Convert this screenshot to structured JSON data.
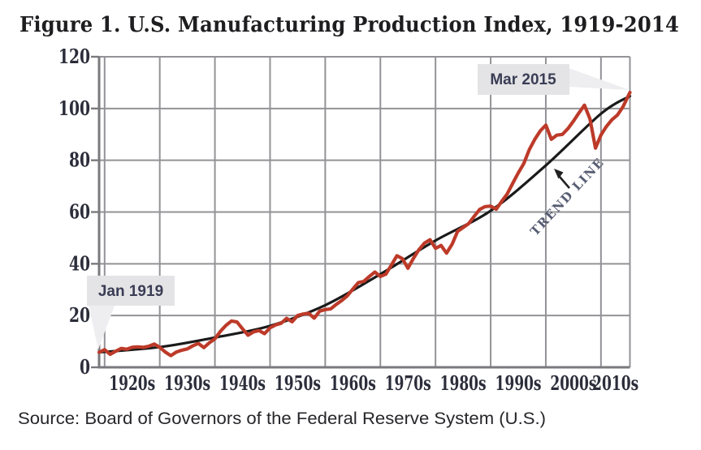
{
  "title": "Figure 1. U.S. Manufacturing Production Index, 1919-2014",
  "source": "Source: Board of Governors of the Federal Reserve System (U.S.)",
  "colors": {
    "series_red": "#bd3a29",
    "trend_black": "#1a1a1a",
    "grid_gray": "#939397",
    "axis_gray": "#7a7a7e",
    "callout_bg": "#e4e4e6",
    "callout_tail": "#eeeef1",
    "callout_text": "#3a3d55",
    "tick_text": "#2b2d3a",
    "title_text": "#1e1e20",
    "source_text": "#26262a",
    "trend_label_text": "#565c72",
    "arrow_black": "#222222"
  },
  "chart_data": {
    "type": "line",
    "title": "Figure 1. U.S. Manufacturing Production Index, 1919-2014",
    "xlabel": "",
    "ylabel": "",
    "x_range": [
      1919,
      2015.25
    ],
    "y_range": [
      0,
      120
    ],
    "grid": true,
    "legend": "none",
    "y_ticks": [
      0,
      20,
      40,
      60,
      80,
      100,
      120
    ],
    "x_tick_labels": [
      "1920s",
      "1930s",
      "1940s",
      "1950s",
      "1960s",
      "1970s",
      "1980s",
      "1990s",
      "2000s",
      "2010s"
    ],
    "x_decade_gridlines": [
      1920,
      1930,
      1940,
      1950,
      1960,
      1970,
      1980,
      1990,
      2000,
      2010
    ],
    "series": [
      {
        "name": "U.S. Manufacturing Production Index",
        "color": "#bd3a29",
        "style": "jagged",
        "x": [
          1919,
          1920,
          1921,
          1922,
          1923,
          1924,
          1925,
          1926,
          1927,
          1928,
          1929,
          1930,
          1931,
          1932,
          1933,
          1934,
          1935,
          1936,
          1937,
          1938,
          1939,
          1940,
          1941,
          1942,
          1943,
          1944,
          1945,
          1946,
          1947,
          1948,
          1949,
          1950,
          1951,
          1952,
          1953,
          1954,
          1955,
          1956,
          1957,
          1958,
          1959,
          1960,
          1961,
          1962,
          1963,
          1964,
          1965,
          1966,
          1967,
          1968,
          1969,
          1970,
          1971,
          1972,
          1973,
          1974,
          1975,
          1976,
          1977,
          1978,
          1979,
          1980,
          1981,
          1982,
          1983,
          1984,
          1985,
          1986,
          1987,
          1988,
          1989,
          1990,
          1991,
          1992,
          1993,
          1994,
          1995,
          1996,
          1997,
          1998,
          1999,
          2000,
          2001,
          2002,
          2003,
          2004,
          2005,
          2006,
          2007,
          2008,
          2009,
          2010,
          2011,
          2012,
          2013,
          2014,
          2015.25
        ],
        "y": [
          5.8,
          6.8,
          5.0,
          6.2,
          7.3,
          7.0,
          7.7,
          7.9,
          7.7,
          8.1,
          9.0,
          7.7,
          5.9,
          4.5,
          5.9,
          6.6,
          7.1,
          8.3,
          9.2,
          7.6,
          9.5,
          11.0,
          13.9,
          16.2,
          17.9,
          17.5,
          14.9,
          12.4,
          13.7,
          14.2,
          13.0,
          15.3,
          16.4,
          17.0,
          18.9,
          17.6,
          20.0,
          20.6,
          20.9,
          19.0,
          21.7,
          22.3,
          22.6,
          24.3,
          25.8,
          27.6,
          30.2,
          32.7,
          33.2,
          35.1,
          36.8,
          35.1,
          36.0,
          39.5,
          43.1,
          42.0,
          38.3,
          42.1,
          45.5,
          48.0,
          49.3,
          46.0,
          47.1,
          44.1,
          47.5,
          52.5,
          54.0,
          55.5,
          58.3,
          61.0,
          62.1,
          62.3,
          61.1,
          64.1,
          67.0,
          71.1,
          75.1,
          78.7,
          84.1,
          88.1,
          91.4,
          93.6,
          88.1,
          89.7,
          90.0,
          92.2,
          95.1,
          98.3,
          101.3,
          96.0,
          84.7,
          89.8,
          93.1,
          95.7,
          97.5,
          100.7,
          106.2
        ]
      },
      {
        "name": "Trend line",
        "color": "#1a1a1a",
        "style": "smooth",
        "x": [
          1919,
          1930,
          1940,
          1950,
          1960,
          1970,
          1980,
          1990,
          2000,
          2010,
          2015.25
        ],
        "y": [
          5.8,
          7.8,
          11.5,
          16.0,
          24.0,
          36.0,
          49.0,
          60.5,
          78.0,
          98.0,
          104.8
        ]
      }
    ],
    "annotations": [
      {
        "id": "jan-1919",
        "label": "Jan 1919",
        "year": 1919,
        "value": 5.8
      },
      {
        "id": "mar-2015",
        "label": "Mar 2015",
        "year": 2015.25,
        "value": 106.2
      },
      {
        "id": "trend-line",
        "label": "TREND LINE"
      }
    ]
  }
}
